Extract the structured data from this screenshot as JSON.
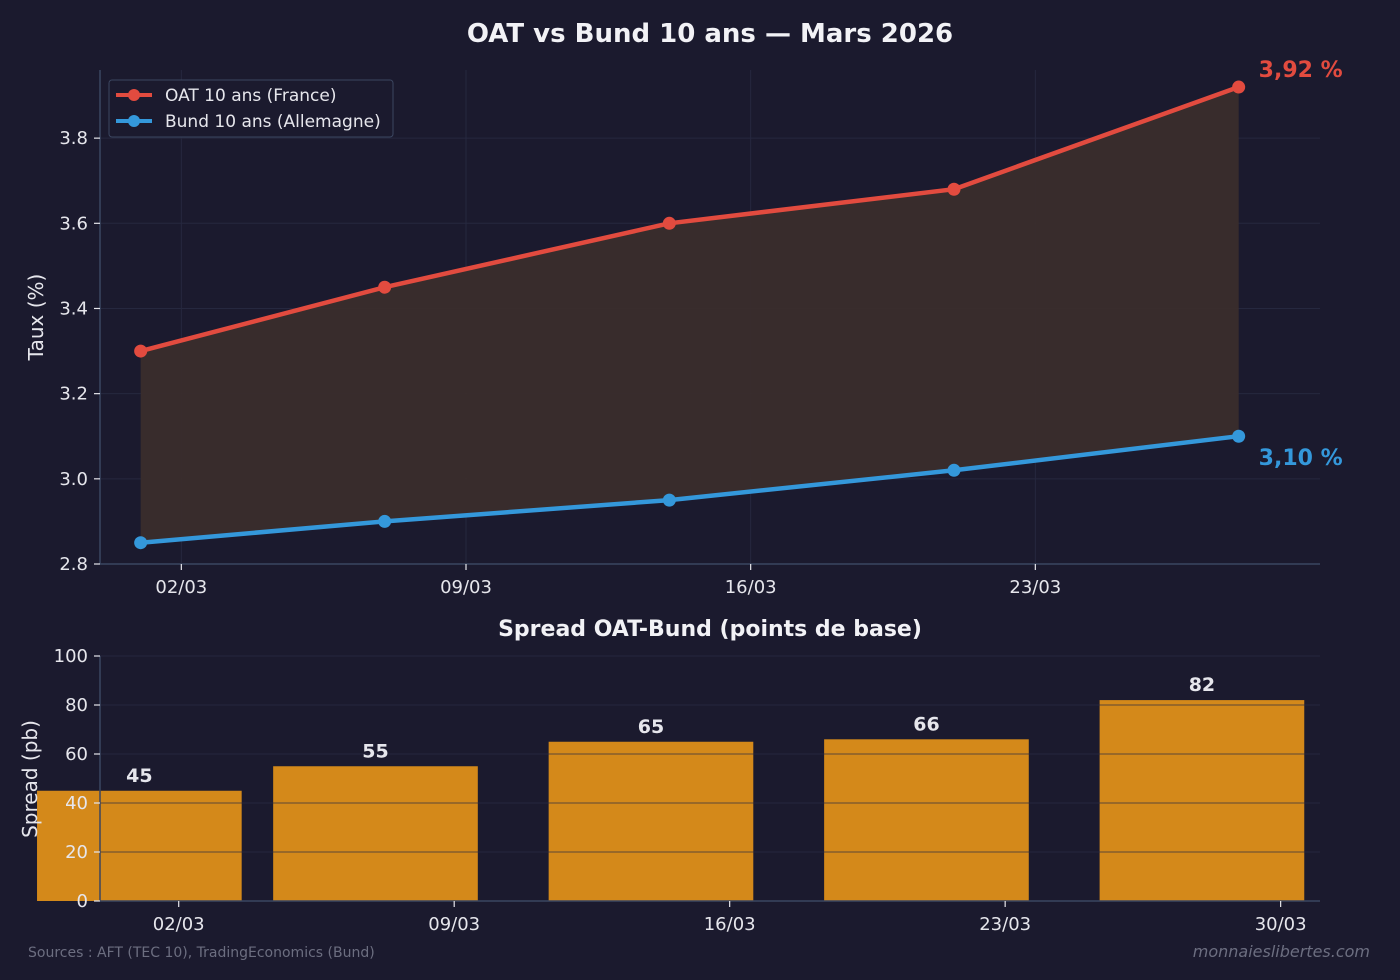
{
  "footer": {
    "sources": "Sources : AFT (TEC 10), TradingEconomics (Bund)",
    "watermark": "monnaieslibertes.com"
  },
  "colors": {
    "background": "#1b1a2e",
    "oat": "#e24b3f",
    "bund": "#3498db",
    "spread_bar": "#d4891a",
    "fill_between": "#3a2d2c",
    "grid": "#26283f",
    "axis": "#3b4660",
    "text": "#e6e6ec",
    "muted_text": "#6c6e80"
  },
  "chart_data": [
    {
      "type": "line",
      "title": "OAT vs Bund 10 ans — Mars 2026",
      "xlabel": "",
      "ylabel": "Taux (%)",
      "x": [
        "2026-03-01",
        "2026-03-07",
        "2026-03-14",
        "2026-03-21",
        "2026-03-28"
      ],
      "x_ticks": [
        "02/03",
        "09/03",
        "16/03",
        "23/03"
      ],
      "x_tick_dates": [
        "2026-03-02",
        "2026-03-09",
        "2026-03-16",
        "2026-03-23"
      ],
      "xlim": [
        "2026-02-28",
        "2026-03-30"
      ],
      "ylim": [
        2.8,
        3.96
      ],
      "y_ticks": [
        "2.8",
        "3.0",
        "3.2",
        "3.4",
        "3.6",
        "3.8"
      ],
      "grid": true,
      "legend": "top-left",
      "fill_between_series": true,
      "series": [
        {
          "name": "OAT 10 ans (France)",
          "values": [
            3.3,
            3.45,
            3.6,
            3.68,
            3.92
          ],
          "color": "#e24b3f"
        },
        {
          "name": "Bund 10 ans (Allemagne)",
          "values": [
            2.85,
            2.9,
            2.95,
            3.02,
            3.1
          ],
          "color": "#3498db"
        }
      ],
      "annotations": [
        {
          "text": "3,92 %",
          "series": 0
        },
        {
          "text": "3,10 %",
          "series": 1
        }
      ]
    },
    {
      "type": "bar",
      "title": "Spread OAT-Bund (points de base)",
      "xlabel": "",
      "ylabel": "Spread (pb)",
      "x": [
        "2026-03-01",
        "2026-03-07",
        "2026-03-14",
        "2026-03-21",
        "2026-03-28"
      ],
      "values": [
        45,
        55,
        65,
        66,
        82
      ],
      "data_labels": [
        "45",
        "55",
        "65",
        "66",
        "82"
      ],
      "x_ticks": [
        "02/03",
        "09/03",
        "16/03",
        "23/03",
        "30/03"
      ],
      "x_tick_dates": [
        "2026-03-02",
        "2026-03-09",
        "2026-03-16",
        "2026-03-23",
        "2026-03-30"
      ],
      "xlim": [
        "2026-02-28",
        "2026-03-31"
      ],
      "ylim": [
        0,
        100
      ],
      "y_ticks": [
        "0",
        "20",
        "40",
        "60",
        "80",
        "100"
      ],
      "grid": true,
      "color": "#d4891a"
    }
  ]
}
